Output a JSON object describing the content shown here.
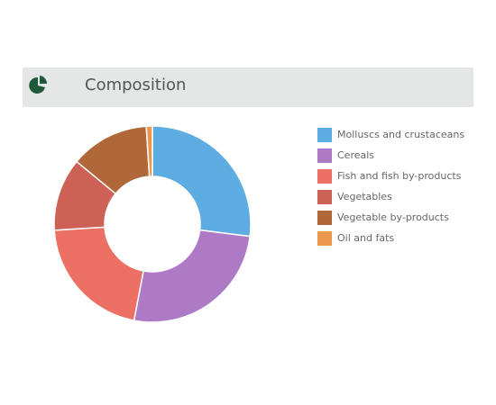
{
  "chart_data": {
    "type": "pie",
    "title": "Composition",
    "categories": [
      "Molluscs and crustaceans",
      "Cereals",
      "Fish and fish by-products",
      "Vegetables",
      "Vegetable by-products",
      "Oil and fats"
    ],
    "values": [
      27,
      26,
      21,
      12,
      13,
      1
    ],
    "colors": [
      "#5dade2",
      "#af7ac5",
      "#ec7063",
      "#cd6155",
      "#b0683a",
      "#eb984e"
    ],
    "legend": "right"
  }
}
